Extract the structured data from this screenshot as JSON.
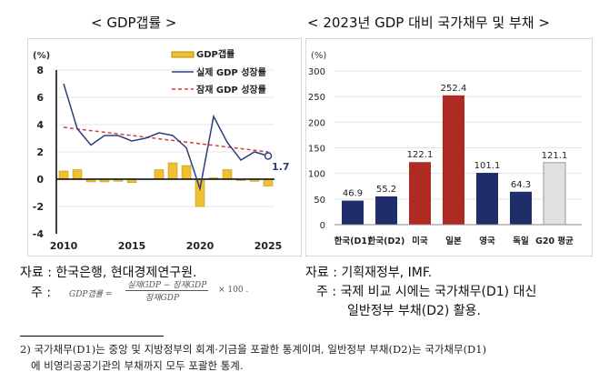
{
  "titles": {
    "left": "< GDP갭률 >",
    "right": "< 2023년 GDP 대비 국가채무 및 부채 >"
  },
  "chart_data": [
    {
      "type": "bar+line",
      "ylabel": "(%)",
      "ylim": [
        -4,
        8
      ],
      "yticks": [
        -4,
        -2,
        0,
        2,
        4,
        6,
        8
      ],
      "xticks": [
        2010,
        2015,
        2020,
        2025
      ],
      "x": [
        2010,
        2011,
        2012,
        2013,
        2014,
        2015,
        2016,
        2017,
        2018,
        2019,
        2020,
        2021,
        2022,
        2023,
        2024,
        2025
      ],
      "series": [
        {
          "name": "GDP갭률",
          "type": "bar",
          "color": "#f0c030",
          "values": [
            0.6,
            0.7,
            -0.2,
            -0.2,
            -0.15,
            -0.25,
            0,
            0.7,
            1.2,
            1.0,
            -2.0,
            0.1,
            0.7,
            -0.1,
            -0.15,
            -0.5
          ]
        },
        {
          "name": "실제 GDP 성장률",
          "type": "line",
          "color": "#2c3e7a",
          "values": [
            7.0,
            3.7,
            2.5,
            3.2,
            3.2,
            2.8,
            3.0,
            3.4,
            3.2,
            2.3,
            -0.7,
            4.6,
            2.7,
            1.4,
            2.0,
            1.7
          ]
        },
        {
          "name": "잠재 GDP 성장률",
          "type": "dashed-line",
          "color": "#d04040",
          "values": [
            3.8,
            3.68,
            3.56,
            3.44,
            3.32,
            3.2,
            3.08,
            2.96,
            2.84,
            2.72,
            2.6,
            2.48,
            2.36,
            2.24,
            2.12,
            2.0
          ]
        }
      ],
      "annotation": "1.7"
    },
    {
      "type": "bar",
      "ylim": [
        0,
        300
      ],
      "yticks": [
        0,
        50,
        100,
        150,
        200,
        250,
        300
      ],
      "categories": [
        "한국(D1)",
        "한국(D2)",
        "미국",
        "일본",
        "영국",
        "독일",
        "G20 평균"
      ],
      "values": [
        46.9,
        55.2,
        122.1,
        252.4,
        101.1,
        64.3,
        121.1
      ],
      "labels": [
        "46.9",
        "55.2",
        "122.1",
        "252.4",
        "101.1",
        "64.3",
        "121.1"
      ],
      "colors": [
        "#1f2d6b",
        "#1f2d6b",
        "#b02a24",
        "#b02a24",
        "#1f2d6b",
        "#1f2d6b",
        "#e0e0e0"
      ]
    }
  ],
  "notes": {
    "left_source": "자료 : 한국은행, 현대경제연구원.",
    "left_note_label": "주 :",
    "formula_lhs": "GDP갭률 =",
    "formula_num": "실제GDP − 잠재GDP",
    "formula_den": "잠재GDP",
    "formula_tail": "× 100 .",
    "right_source": "자료 : 기획재정부, IMF.",
    "right_note1": "주 : 국제 비교 시에는 국가채무(D1) 대신",
    "right_note2": "일반정부 부채(D2) 활용.",
    "footnote1": "2) 국가채무(D1)는 중앙 및 지방정부의 회계·기금을 포괄한 통계이며, 일반정부 부채(D2)는 국가채무(D1)",
    "footnote2": "에 비영리공공기관의 부채까지 모두 포괄한 통계."
  }
}
